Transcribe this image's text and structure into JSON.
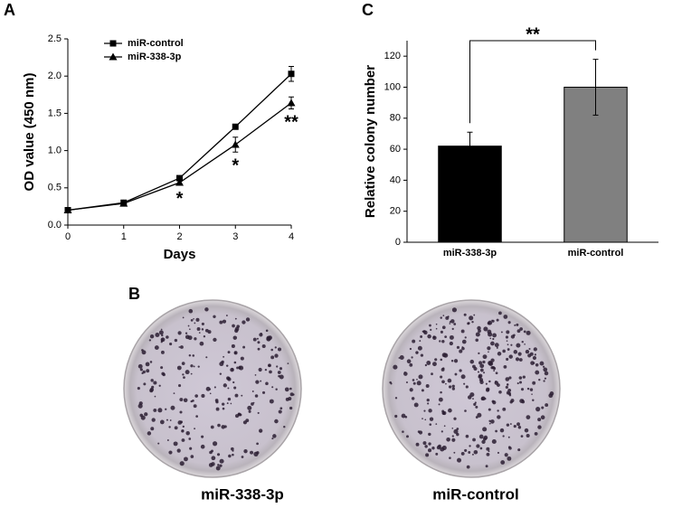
{
  "panel_labels": [
    "A",
    "B",
    "C"
  ],
  "plates": {
    "captions": [
      "miR-338-3p",
      "miR-control"
    ]
  },
  "chart_data": [
    {
      "type": "line",
      "xlabel": "Days",
      "ylabel": "OD value (450 nm)",
      "x": [
        0,
        1,
        2,
        3,
        4
      ],
      "xlim": [
        0,
        4
      ],
      "xticks": [
        0,
        1,
        2,
        3,
        4
      ],
      "ylim": [
        0,
        2.5
      ],
      "yticks": [
        {
          "value": 0,
          "label": "0.0"
        },
        0.5,
        {
          "value": 1,
          "label": "1.0"
        },
        1.5,
        {
          "value": 2,
          "label": "2.0"
        },
        2.5
      ],
      "series": [
        {
          "name": "miR-control",
          "color": "#000000",
          "marker": "square",
          "values": [
            0.2,
            0.3,
            0.63,
            1.32,
            2.03
          ],
          "errors": [
            0.02,
            0.02,
            0.03,
            0.03,
            0.1
          ]
        },
        {
          "name": "miR-338-3p",
          "color": "#000000",
          "marker": "triangle",
          "values": [
            0.2,
            0.29,
            0.57,
            1.08,
            1.64
          ],
          "errors": [
            0.02,
            0.02,
            0.03,
            0.1,
            0.08
          ]
        }
      ],
      "annotations": [
        {
          "text": "*",
          "x": 2
        },
        {
          "text": "*",
          "x": 3
        },
        {
          "text": "**",
          "x": 4
        }
      ]
    },
    {
      "type": "bar",
      "ylabel": "Relative colony number",
      "categories": [
        "miR-338-3p",
        "miR-control"
      ],
      "values": [
        62,
        100
      ],
      "errors": [
        9,
        18
      ],
      "colors": [
        "#000000",
        "#808080"
      ],
      "ylim": [
        0,
        130
      ],
      "yticks": [
        0,
        20,
        40,
        60,
        80,
        100,
        120
      ],
      "annotation": "**"
    }
  ]
}
